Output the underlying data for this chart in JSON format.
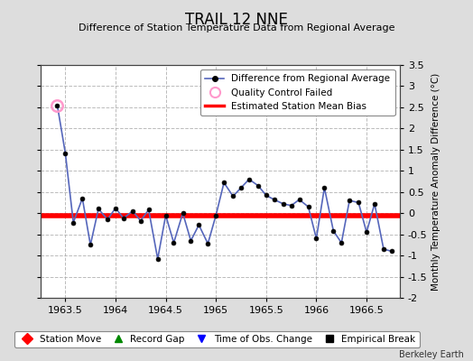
{
  "title": "TRAIL 12 NNE",
  "subtitle": "Difference of Station Temperature Data from Regional Average",
  "ylabel_right": "Monthly Temperature Anomaly Difference (°C)",
  "credit": "Berkeley Earth",
  "xlim": [
    1963.25,
    1966.83
  ],
  "ylim": [
    -2.0,
    3.5
  ],
  "yticks": [
    -2,
    -1.5,
    -1,
    -0.5,
    0,
    0.5,
    1,
    1.5,
    2,
    2.5,
    3,
    3.5
  ],
  "xticks": [
    1963.5,
    1964.0,
    1964.5,
    1965.0,
    1965.5,
    1966.0,
    1966.5
  ],
  "xtick_labels": [
    "1963.5",
    "1964",
    "1964.5",
    "1965",
    "1965.5",
    "1966",
    "1966.5"
  ],
  "bias_line_y": -0.05,
  "line_color": "#5566bb",
  "marker_color": "#000000",
  "bias_color": "#ff0000",
  "qc_fail_color": "#ff99cc",
  "background_color": "#dddddd",
  "plot_bg_color": "#ffffff",
  "grid_color": "#aaaaaa",
  "x_data": [
    1963.42,
    1963.5,
    1963.58,
    1963.67,
    1963.75,
    1963.83,
    1963.92,
    1964.0,
    1964.08,
    1964.17,
    1964.25,
    1964.33,
    1964.42,
    1964.5,
    1964.58,
    1964.67,
    1964.75,
    1964.83,
    1964.92,
    1965.0,
    1965.08,
    1965.17,
    1965.25,
    1965.33,
    1965.42,
    1965.5,
    1965.58,
    1965.67,
    1965.75,
    1965.83,
    1965.92,
    1966.0,
    1966.08,
    1966.17,
    1966.25,
    1966.33,
    1966.42,
    1966.5,
    1966.58,
    1966.67,
    1966.75
  ],
  "y_data": [
    2.55,
    1.42,
    -0.22,
    0.35,
    -0.75,
    0.1,
    -0.15,
    0.12,
    -0.12,
    0.05,
    -0.18,
    0.08,
    -1.08,
    -0.05,
    -0.7,
    0.0,
    -0.65,
    -0.28,
    -0.72,
    -0.05,
    0.72,
    0.4,
    0.6,
    0.8,
    0.65,
    0.42,
    0.32,
    0.22,
    0.18,
    0.32,
    0.15,
    -0.6,
    0.6,
    -0.42,
    -0.7,
    0.3,
    0.25,
    -0.45,
    0.22,
    -0.85,
    -0.9
  ],
  "qc_fail_indices": [
    0
  ],
  "legend_line_label": "Difference from Regional Average",
  "legend_qc_label": "Quality Control Failed",
  "legend_bias_label": "Estimated Station Mean Bias",
  "bottom_legend": [
    {
      "label": "Station Move",
      "color": "#ff0000",
      "marker": "D"
    },
    {
      "label": "Record Gap",
      "color": "#008800",
      "marker": "^"
    },
    {
      "label": "Time of Obs. Change",
      "color": "#0000ff",
      "marker": "v"
    },
    {
      "label": "Empirical Break",
      "color": "#000000",
      "marker": "s"
    }
  ]
}
